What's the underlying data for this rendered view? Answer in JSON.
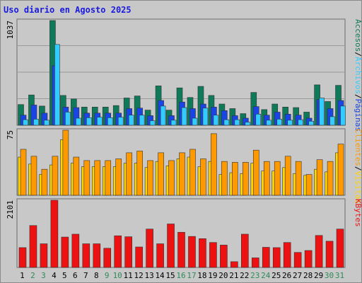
{
  "title": "Uso diario en Agosto 2025",
  "chart_data": [
    {
      "type": "bar",
      "name": "hits-panel",
      "ymax_label": "1037",
      "ylim": [
        0,
        1037
      ],
      "series": [
        {
          "name": "Accesos",
          "color": "#0e7a5a",
          "values": [
            205,
            300,
            190,
            1037,
            295,
            260,
            180,
            180,
            180,
            195,
            270,
            290,
            150,
            390,
            150,
            370,
            275,
            385,
            295,
            210,
            165,
            115,
            325,
            155,
            210,
            180,
            175,
            130,
            400,
            235,
            395
          ]
        },
        {
          "name": "Páginas",
          "color": "#1a45e6",
          "values": [
            100,
            200,
            120,
            590,
            180,
            175,
            120,
            120,
            120,
            120,
            165,
            170,
            95,
            245,
            95,
            230,
            165,
            210,
            180,
            145,
            95,
            70,
            185,
            100,
            130,
            110,
            100,
            70,
            255,
            165,
            245
          ]
        },
        {
          "name": "Archivos",
          "color": "#33ccff",
          "values": [
            55,
            60,
            50,
            800,
            130,
            70,
            75,
            80,
            75,
            80,
            100,
            100,
            45,
            190,
            50,
            175,
            70,
            170,
            100,
            55,
            55,
            30,
            110,
            50,
            60,
            50,
            55,
            40,
            270,
            85,
            190
          ]
        }
      ],
      "legend": [
        "Accesos",
        "/",
        "Archivos",
        "/",
        "Páginas"
      ]
    },
    {
      "type": "bar",
      "name": "visits-panel",
      "ymax_label": "75",
      "ylim": [
        0,
        75
      ],
      "series": [
        {
          "name": "Visitas",
          "color": "#ffd500",
          "values": [
            44,
            36,
            24,
            35,
            64,
            37,
            33,
            33,
            33,
            33,
            37,
            37,
            32,
            39,
            34,
            42,
            44,
            33,
            39,
            24,
            26,
            25,
            37,
            28,
            28,
            32,
            25,
            23,
            30,
            27,
            49
          ]
        },
        {
          "name": "Clientes",
          "color": "#ff9900",
          "values": [
            53,
            45,
            30,
            45,
            75,
            44,
            40,
            40,
            40,
            42,
            49,
            51,
            40,
            49,
            40,
            49,
            53,
            42,
            71,
            39,
            38,
            38,
            52,
            39,
            39,
            45,
            39,
            24,
            41,
            39,
            59
          ]
        }
      ],
      "legend": [
        "Clientes",
        "/",
        "Visitas"
      ]
    },
    {
      "type": "bar",
      "name": "kbytes-panel",
      "ymax_label": "2101",
      "ylim": [
        0,
        2101
      ],
      "series": [
        {
          "name": "KBytes",
          "color": "#ee1111",
          "values": [
            620,
            1310,
            740,
            2101,
            950,
            1040,
            740,
            740,
            600,
            990,
            960,
            640,
            1200,
            740,
            1360,
            1100,
            970,
            900,
            780,
            700,
            180,
            1040,
            300,
            630,
            620,
            780,
            470,
            530,
            1000,
            820,
            1200
          ]
        }
      ],
      "legend": [
        "KBytes"
      ]
    }
  ],
  "x_axis": {
    "days": [
      "1",
      "2",
      "3",
      "4",
      "5",
      "6",
      "7",
      "8",
      "9",
      "10",
      "11",
      "12",
      "13",
      "14",
      "15",
      "16",
      "17",
      "18",
      "19",
      "20",
      "21",
      "22",
      "23",
      "24",
      "25",
      "26",
      "27",
      "28",
      "29",
      "30",
      "31"
    ],
    "weekend_days": [
      "2",
      "3",
      "9",
      "10",
      "16",
      "17",
      "23",
      "24",
      "30",
      "31"
    ],
    "weekday_color": "#000000",
    "weekend_color": "#2e8b57"
  },
  "legend_colors": {
    "separator": "#000000"
  }
}
